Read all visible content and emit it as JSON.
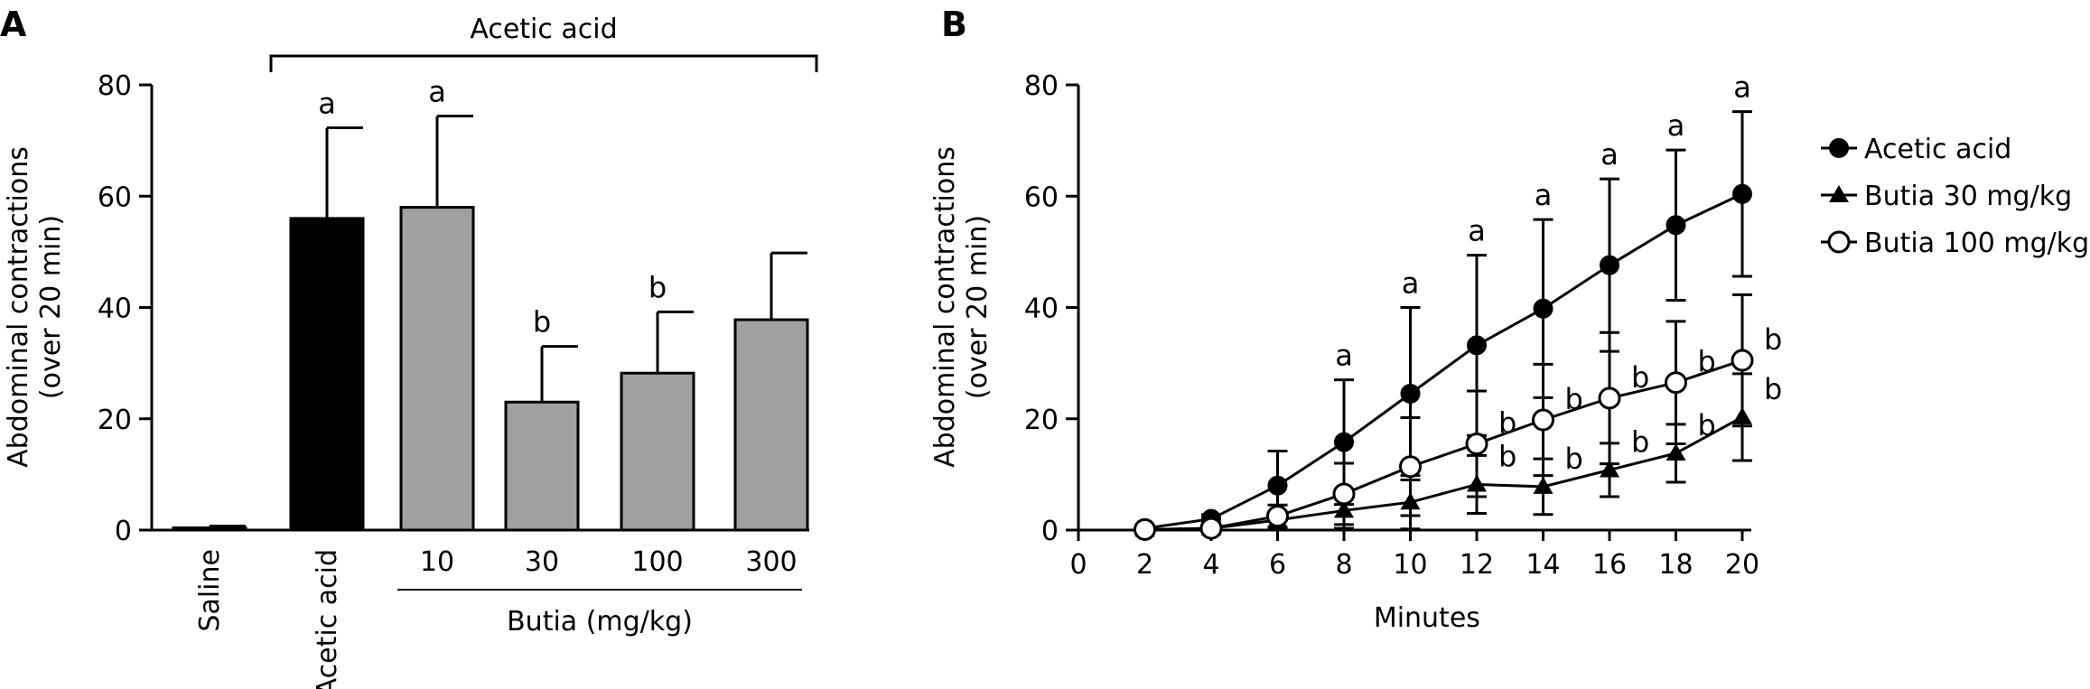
{
  "chart_data": [
    {
      "panel": "A",
      "type": "bar",
      "title": "",
      "ylabel": [
        "Abdominal contractions",
        "(over 20 min)"
      ],
      "xlabel": "",
      "ylim": [
        0,
        80
      ],
      "yticks": [
        0,
        20,
        40,
        60,
        80
      ],
      "bracket_label": "Acetic acid",
      "group_label": "Butia (mg/kg)",
      "categories": [
        "Saline",
        "Acetic acid",
        "10",
        "30",
        "100",
        "300"
      ],
      "values": [
        0.4,
        56,
        58,
        23,
        28.2,
        37.8
      ],
      "errors": [
        0.3,
        16.3,
        16.4,
        10,
        11,
        12
      ],
      "colors": [
        "#000000",
        "#000000",
        "#a0a0a0",
        "#a0a0a0",
        "#a0a0a0",
        "#a0a0a0"
      ],
      "annotations": [
        "",
        "a",
        "a",
        "b",
        "b",
        ""
      ]
    },
    {
      "panel": "B",
      "type": "line",
      "title": "",
      "xlabel": "Minutes",
      "ylabel": [
        "Abdominal contractions",
        "(over 20 min)"
      ],
      "xlim": [
        0,
        20
      ],
      "ylim": [
        0,
        80
      ],
      "xticks": [
        0,
        2,
        4,
        6,
        8,
        10,
        12,
        14,
        16,
        18,
        20
      ],
      "yticks": [
        0,
        20,
        40,
        60,
        80
      ],
      "legend_position": "right",
      "x": [
        2,
        4,
        6,
        8,
        10,
        12,
        14,
        16,
        18,
        20
      ],
      "series": [
        {
          "name": "Acetic acid",
          "marker": "filled-circle",
          "values": [
            0.3,
            2,
            8,
            15.8,
            24.5,
            33.2,
            39.8,
            47.6,
            54.8,
            60.4
          ],
          "errors": [
            0.2,
            0.8,
            6.2,
            11.2,
            15.5,
            16.2,
            16,
            15.5,
            13.5,
            14.8
          ],
          "annotations": [
            "",
            "",
            "",
            "a",
            "a",
            "a",
            "a",
            "a",
            "a",
            "a"
          ]
        },
        {
          "name": "Butia 30 mg/kg",
          "marker": "filled-triangle",
          "values": [
            0.1,
            0.3,
            1.8,
            3.5,
            5,
            8.2,
            7.8,
            10.8,
            13.8,
            20.3
          ],
          "errors": [
            0.1,
            0.3,
            1.5,
            3.2,
            4.8,
            5.2,
            5,
            4.8,
            5.2,
            7.8
          ],
          "annotations": [
            "",
            "",
            "",
            "",
            "",
            "b",
            "b",
            "b",
            "b",
            "b"
          ]
        },
        {
          "name": "Butia 100 mg/kg",
          "marker": "open-circle",
          "values": [
            0.1,
            0.3,
            2.5,
            6.5,
            11.4,
            15.5,
            19.8,
            23.7,
            26.5,
            30.5
          ],
          "errors": [
            0.1,
            0.3,
            2,
            5.5,
            8.8,
            9.5,
            10,
            11.8,
            11,
            11.8
          ],
          "annotations": [
            "",
            "",
            "",
            "",
            "",
            "b",
            "b",
            "b",
            "b",
            "b"
          ]
        }
      ]
    }
  ],
  "panel_labels": [
    "A",
    "B"
  ]
}
